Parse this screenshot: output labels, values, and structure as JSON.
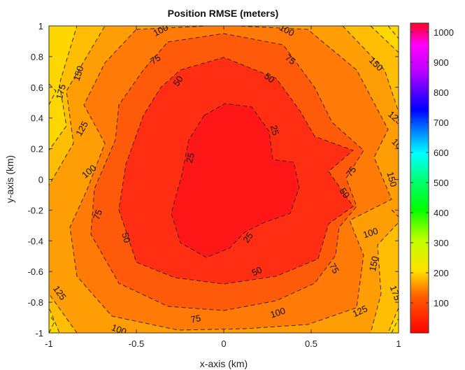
{
  "chart_data": {
    "type": "contourf",
    "title": "Position RMSE (meters)",
    "xlabel": "x-axis (km)",
    "ylabel": "y-axis (km)",
    "xlim": [
      -1,
      1
    ],
    "ylim": [
      -1,
      1
    ],
    "xticks": [
      -1,
      -0.5,
      0,
      0.5,
      1
    ],
    "xtick_labels": [
      "-1",
      "-0.5",
      "0",
      "0.5",
      "1"
    ],
    "yticks": [
      1,
      0.8,
      0.6,
      0.4,
      0.2,
      0,
      -0.2,
      -0.4,
      -0.6,
      -0.8,
      -1
    ],
    "ytick_labels": [
      "1",
      "0.8",
      "0.6",
      "0.4",
      "0.2",
      "0",
      "-0.2",
      "-0.4",
      "-0.6",
      "-0.8",
      "-1"
    ],
    "contour_levels": [
      25,
      50,
      75,
      100,
      125,
      150,
      175
    ],
    "contour_fill_colors": [
      "#ff1a1a",
      "#ff3a12",
      "#ff560a",
      "#ff7a06",
      "#ff9d05",
      "#ffbe04",
      "#ffe200",
      "#ffff00"
    ],
    "contour_labels": [
      {
        "text": "100",
        "at": [
          -0.36,
          0.97
        ],
        "angle": -28
      },
      {
        "text": "100",
        "at": [
          0.36,
          0.97
        ],
        "angle": 28
      },
      {
        "text": "75",
        "at": [
          -0.39,
          0.78
        ],
        "angle": -32
      },
      {
        "text": "75",
        "at": [
          0.38,
          0.78
        ],
        "angle": 38
      },
      {
        "text": "50",
        "at": [
          -0.26,
          0.64
        ],
        "angle": -55
      },
      {
        "text": "50",
        "at": [
          0.26,
          0.66
        ],
        "angle": 38
      },
      {
        "text": "150",
        "at": [
          -0.83,
          0.69
        ],
        "angle": -72
      },
      {
        "text": "175",
        "at": [
          -0.93,
          0.57
        ],
        "angle": -75
      },
      {
        "text": "150",
        "at": [
          0.87,
          0.75
        ],
        "angle": 45
      },
      {
        "text": "125",
        "at": [
          0.98,
          0.4
        ],
        "angle": 40
      },
      {
        "text": "100",
        "at": [
          1.0,
          0.22
        ],
        "angle": 45
      },
      {
        "text": "25",
        "at": [
          0.29,
          0.32
        ],
        "angle": 75
      },
      {
        "text": "25",
        "at": [
          -0.19,
          0.14
        ],
        "angle": -75
      },
      {
        "text": "125",
        "at": [
          -0.81,
          0.33
        ],
        "angle": -60
      },
      {
        "text": "100",
        "at": [
          -0.77,
          0.05
        ],
        "angle": -40
      },
      {
        "text": "75",
        "at": [
          0.73,
          0.05
        ],
        "angle": -55
      },
      {
        "text": "150",
        "at": [
          0.96,
          0.0
        ],
        "angle": 75
      },
      {
        "text": "50",
        "at": [
          0.69,
          -0.09
        ],
        "angle": 55
      },
      {
        "text": "75",
        "at": [
          -0.72,
          -0.23
        ],
        "angle": -70
      },
      {
        "text": "50",
        "at": [
          -0.56,
          -0.38
        ],
        "angle": 75
      },
      {
        "text": "25",
        "at": [
          0.14,
          -0.38
        ],
        "angle": -55
      },
      {
        "text": "100",
        "at": [
          0.84,
          -0.35
        ],
        "angle": -18
      },
      {
        "text": "150",
        "at": [
          0.86,
          -0.55
        ],
        "angle": -78
      },
      {
        "text": "75",
        "at": [
          0.63,
          -0.58
        ],
        "angle": 60
      },
      {
        "text": "50",
        "at": [
          0.19,
          -0.6
        ],
        "angle": -25
      },
      {
        "text": "175",
        "at": [
          0.98,
          -0.74
        ],
        "angle": 70
      },
      {
        "text": "125",
        "at": [
          -0.94,
          -0.74
        ],
        "angle": 55
      },
      {
        "text": "100",
        "at": [
          0.31,
          -0.87
        ],
        "angle": -18
      },
      {
        "text": "125",
        "at": [
          0.78,
          -0.86
        ],
        "angle": -25
      },
      {
        "text": "75",
        "at": [
          -0.16,
          -0.91
        ],
        "angle": -10
      },
      {
        "text": "100",
        "at": [
          -0.6,
          -0.98
        ],
        "angle": 20
      }
    ],
    "colorbar": {
      "colormap": "hsv",
      "clim": [
        0,
        1030
      ],
      "ticks": [
        100,
        200,
        300,
        400,
        500,
        600,
        700,
        800,
        900,
        1000
      ],
      "tick_labels": [
        "100",
        "200",
        "300",
        "400",
        "500",
        "600",
        "700",
        "800",
        "900",
        "1000"
      ]
    },
    "grid": false
  }
}
